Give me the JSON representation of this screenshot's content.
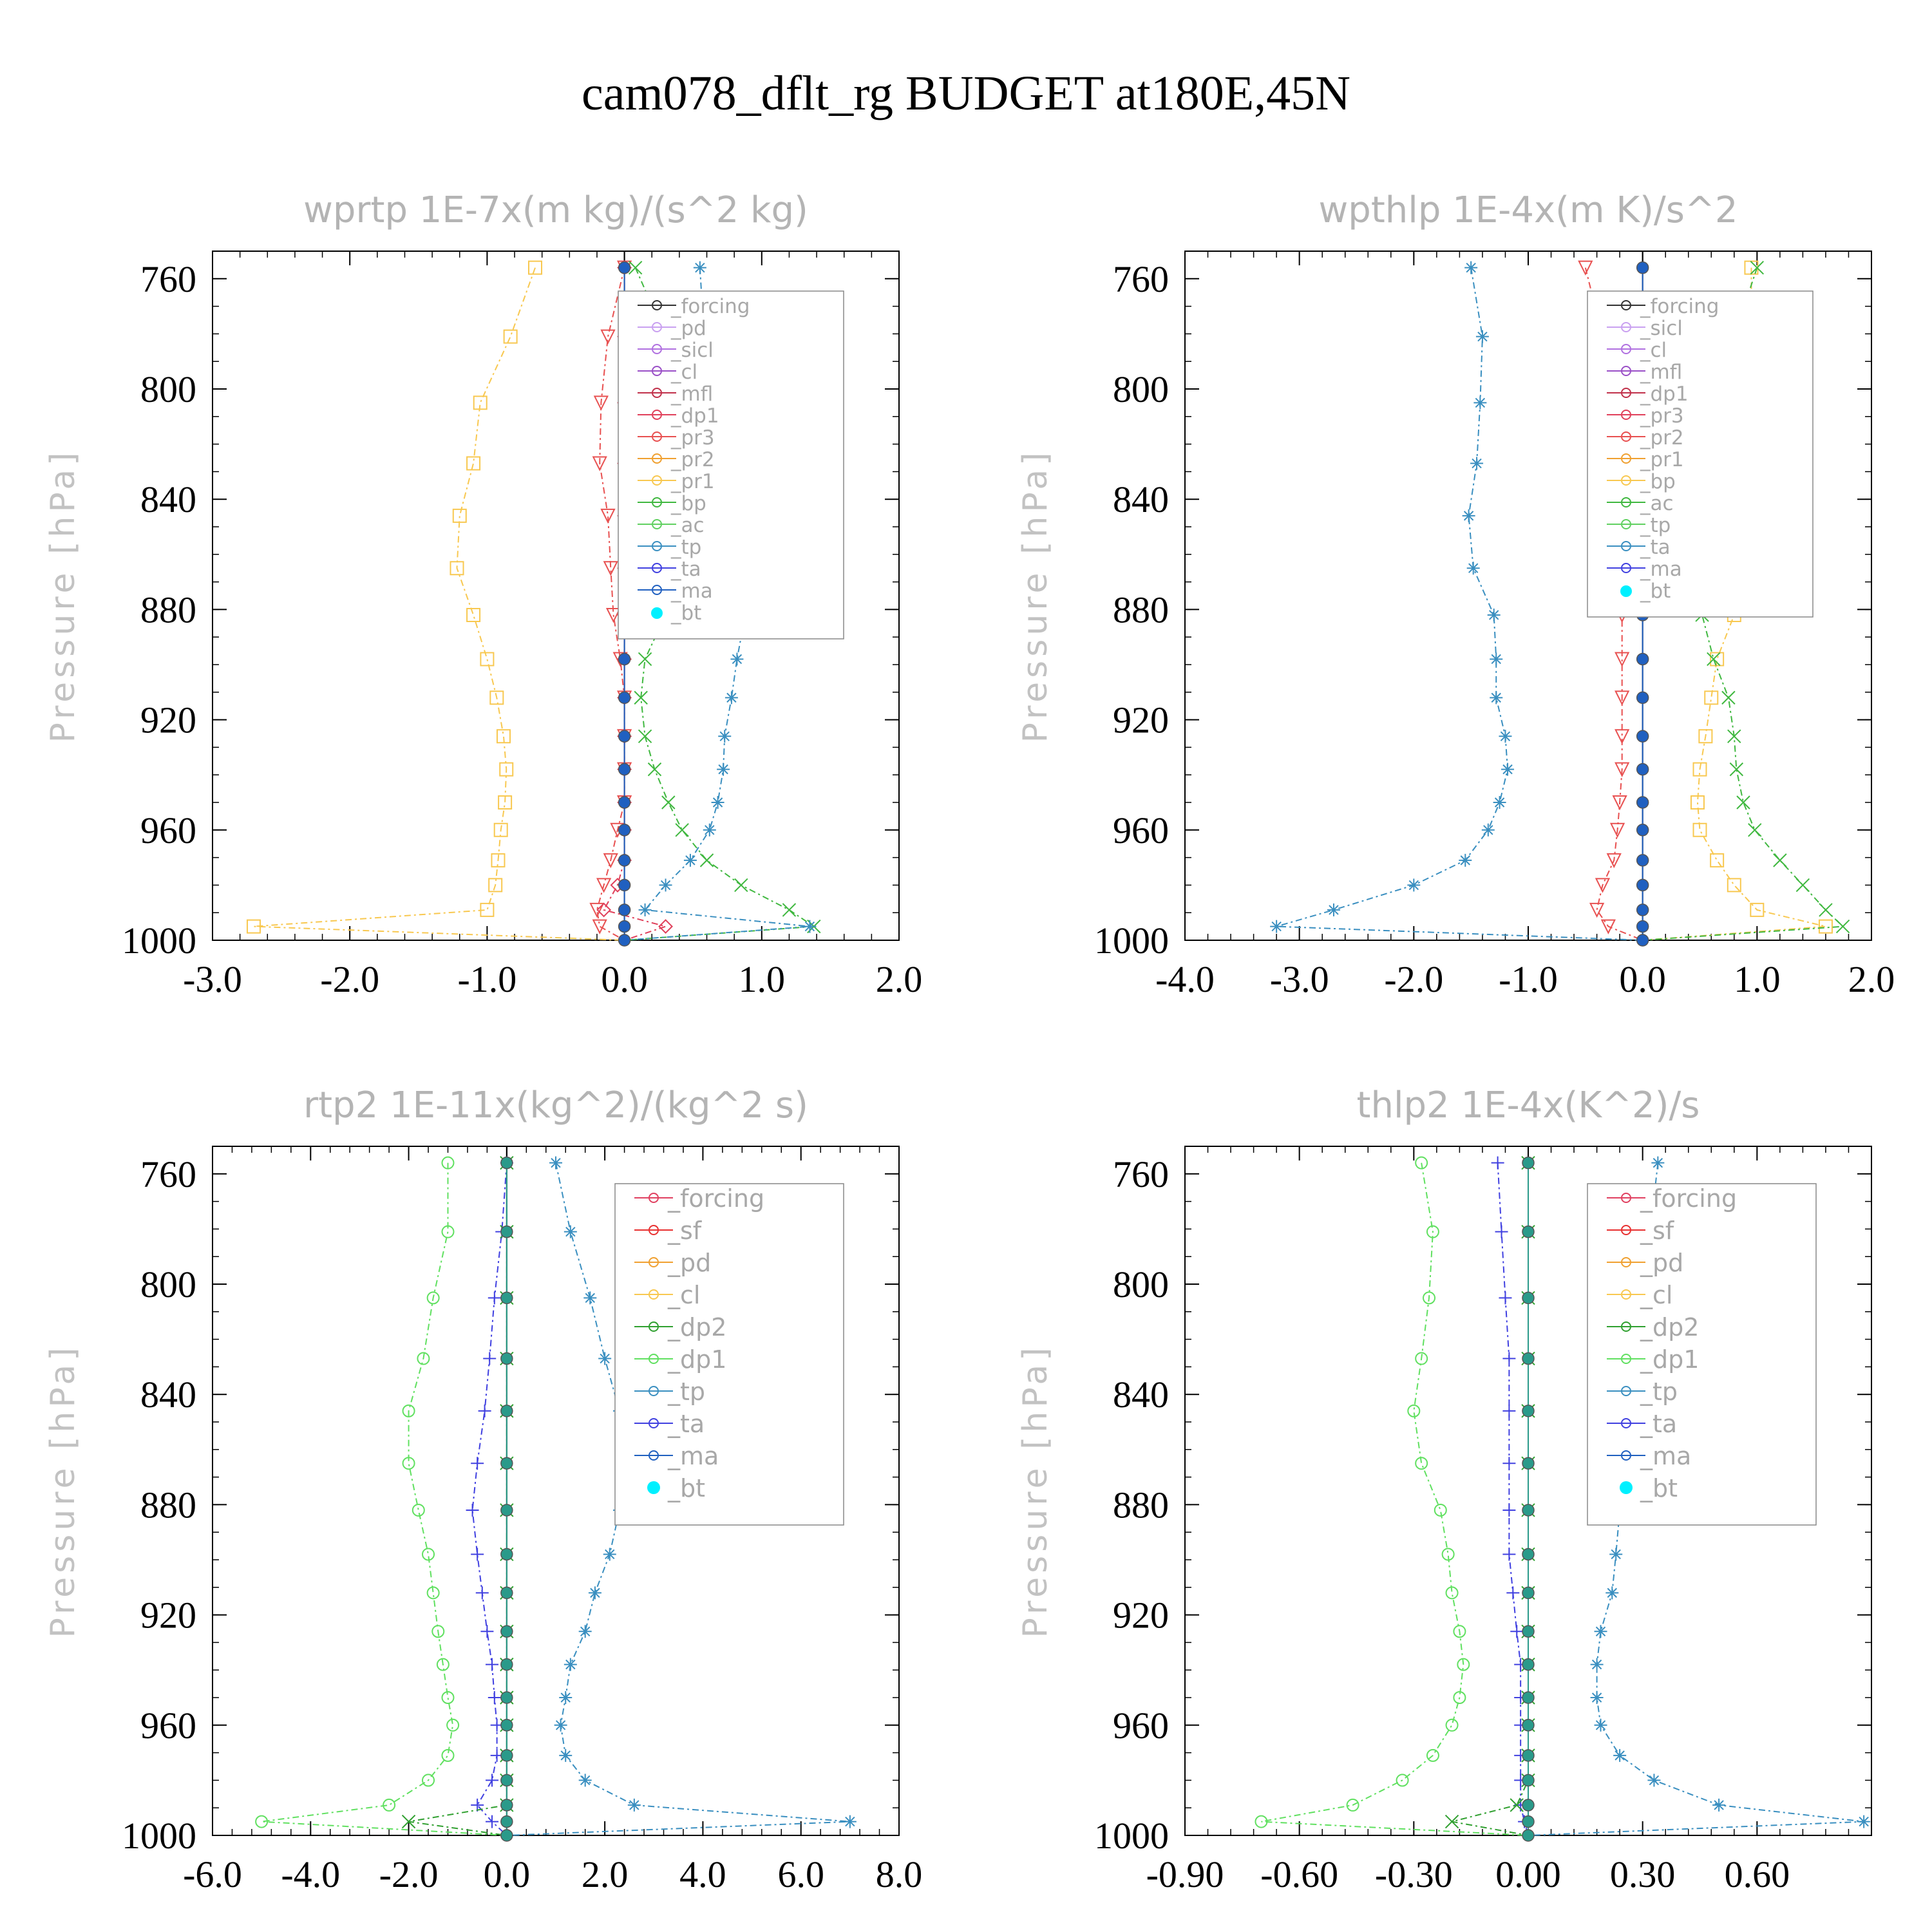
{
  "title": "cam078_dflt_rg  BUDGET at180E,45N",
  "colors": {
    "forcing": "#333333",
    "pd": "#c9a0f0",
    "sicl": "#b070e0",
    "cl": "#9a4fc7",
    "mfl": "#c0304a",
    "dp1": "#e0405a",
    "pr3": "#e85050",
    "pr2": "#f0a030",
    "pr1": "#f8c850",
    "bp": "#40b840",
    "ac": "#60d060",
    "tp": "#3a8fc0",
    "ta": "#4040e0",
    "ma": "#2060c0",
    "bt": "#00e8f0",
    "sf": "#e83030",
    "dp2": "#30a030",
    "green_dp1": "#60e060"
  },
  "chart_data": [
    {
      "type": "line",
      "title": "wprtp   1E-7x(m kg)/(s^2 kg)",
      "ylabel": "Pressure [hPa]",
      "xlim": [
        -3.0,
        2.0
      ],
      "ylim": [
        1000,
        750
      ],
      "xticks": [
        "-3.0",
        "-2.0",
        "-1.0",
        "0.0",
        "1.0",
        "2.0"
      ],
      "yticks": [
        "760",
        "800",
        "840",
        "880",
        "920",
        "960",
        "1000"
      ],
      "legend": [
        "_forcing",
        "_pd",
        "_sicl",
        "_cl",
        "_mfl",
        "_dp1",
        "_pr3",
        "_pr2",
        "_pr1",
        "_bp",
        "_ac",
        "_tp",
        "_ta",
        "_ma",
        "_bt"
      ],
      "legend_position": "upper-right",
      "levels": [
        756,
        781,
        805,
        827,
        846,
        865,
        882,
        898,
        912,
        926,
        938,
        950,
        960,
        971,
        980,
        989,
        995,
        1000
      ],
      "series": [
        {
          "name": "_pr1",
          "color": "#f8c850",
          "marker": "square",
          "values": [
            -0.65,
            -0.83,
            -1.05,
            -1.1,
            -1.2,
            -1.22,
            -1.1,
            -1.0,
            -0.93,
            -0.88,
            -0.86,
            -0.87,
            -0.9,
            -0.92,
            -0.94,
            -1.0,
            -2.7,
            0.0
          ]
        },
        {
          "name": "_pr3",
          "color": "#e85050",
          "marker": "triangle-down",
          "values": [
            0.0,
            -0.12,
            -0.17,
            -0.18,
            -0.12,
            -0.1,
            -0.08,
            -0.03,
            0.0,
            0.0,
            0.0,
            0.0,
            -0.05,
            -0.1,
            -0.15,
            -0.2,
            -0.18,
            0.0
          ]
        },
        {
          "name": "_dp1",
          "color": "#e0405a",
          "marker": "diamond",
          "values": [
            0.0,
            0.0,
            0.0,
            0.0,
            0.0,
            0.0,
            0.0,
            0.0,
            0.0,
            0.0,
            0.0,
            0.0,
            0.0,
            0.0,
            -0.05,
            -0.15,
            0.3,
            0.0
          ]
        },
        {
          "name": "_bp",
          "color": "#40b840",
          "marker": "cross",
          "values": [
            0.08,
            0.3,
            0.48,
            0.55,
            0.5,
            0.4,
            0.3,
            0.15,
            0.12,
            0.15,
            0.22,
            0.32,
            0.42,
            0.6,
            0.85,
            1.2,
            1.38,
            0.0
          ]
        },
        {
          "name": "_tp",
          "color": "#3a8fc0",
          "marker": "star",
          "values": [
            0.55,
            0.58,
            0.63,
            0.72,
            0.85,
            0.93,
            0.88,
            0.82,
            0.78,
            0.73,
            0.72,
            0.68,
            0.62,
            0.48,
            0.3,
            0.15,
            1.35,
            0.0
          ]
        },
        {
          "name": "_bt",
          "color": "#2060c0",
          "marker": "dot",
          "values": [
            0,
            0,
            0,
            0,
            0,
            0,
            0,
            0,
            0,
            0,
            0,
            0,
            0,
            0,
            0,
            0,
            0,
            0
          ]
        }
      ]
    },
    {
      "type": "line",
      "title": "wpthlp   1E-4x(m K)/s^2",
      "ylabel": "Pressure [hPa]",
      "xlim": [
        -4.0,
        2.0
      ],
      "ylim": [
        1000,
        750
      ],
      "xticks": [
        "-4.0",
        "-3.0",
        "-2.0",
        "-1.0",
        "0.0",
        "1.0",
        "2.0"
      ],
      "yticks": [
        "760",
        "800",
        "840",
        "880",
        "920",
        "960",
        "1000"
      ],
      "legend": [
        "_forcing",
        "_sicl",
        "_cl",
        "_mfl",
        "_dp1",
        "_pr3",
        "_pr2",
        "_pr1",
        "_bp",
        "_ac",
        "_tp",
        "_ta",
        "_ma",
        "_bt"
      ],
      "legend_position": "upper-right",
      "levels": [
        756,
        781,
        805,
        827,
        846,
        865,
        882,
        898,
        912,
        926,
        938,
        950,
        960,
        971,
        980,
        989,
        995,
        1000
      ],
      "series": [
        {
          "name": "_pr1",
          "color": "#f8c850",
          "marker": "square",
          "values": [
            0.95,
            0.95,
            0.97,
            0.98,
            1.0,
            0.95,
            0.8,
            0.65,
            0.6,
            0.55,
            0.5,
            0.48,
            0.5,
            0.65,
            0.8,
            1.0,
            1.6,
            0.0
          ]
        },
        {
          "name": "_pr3",
          "color": "#e85050",
          "marker": "triangle-down",
          "values": [
            -0.5,
            -0.35,
            -0.28,
            -0.25,
            -0.22,
            -0.2,
            -0.18,
            -0.18,
            -0.18,
            -0.18,
            -0.18,
            -0.2,
            -0.22,
            -0.25,
            -0.35,
            -0.4,
            -0.3,
            0.0
          ]
        },
        {
          "name": "_bp",
          "color": "#40b840",
          "marker": "cross",
          "values": [
            1.0,
            0.8,
            0.7,
            0.6,
            0.55,
            0.5,
            0.52,
            0.62,
            0.75,
            0.8,
            0.82,
            0.88,
            0.98,
            1.2,
            1.4,
            1.6,
            1.75,
            0.0
          ]
        },
        {
          "name": "_tp",
          "color": "#3a8fc0",
          "marker": "star",
          "values": [
            -1.5,
            -1.4,
            -1.42,
            -1.45,
            -1.52,
            -1.48,
            -1.3,
            -1.28,
            -1.28,
            -1.2,
            -1.18,
            -1.25,
            -1.35,
            -1.55,
            -2.0,
            -2.7,
            -3.2,
            0.0
          ]
        },
        {
          "name": "_bt",
          "color": "#2060c0",
          "marker": "dot",
          "values": [
            0,
            0,
            0,
            0,
            0,
            0,
            0,
            0,
            0,
            0,
            0,
            0,
            0,
            0,
            0,
            0,
            0,
            0
          ]
        }
      ]
    },
    {
      "type": "line",
      "title": "rtp2   1E-11x(kg^2)/(kg^2 s)",
      "ylabel": "Pressure [hPa]",
      "xlim": [
        -6.0,
        8.0
      ],
      "ylim": [
        1000,
        750
      ],
      "xticks": [
        "-6.0",
        "-4.0",
        "-2.0",
        "0.0",
        "2.0",
        "4.0",
        "6.0",
        "8.0"
      ],
      "yticks": [
        "760",
        "800",
        "840",
        "880",
        "920",
        "960",
        "1000"
      ],
      "legend": [
        "_forcing",
        "_sf",
        "_pd",
        "_cl",
        "_dp2",
        "_dp1",
        "_tp",
        "_ta",
        "_ma",
        "_bt"
      ],
      "legend_position": "upper-right",
      "levels": [
        756,
        781,
        805,
        827,
        846,
        865,
        882,
        898,
        912,
        926,
        938,
        950,
        960,
        971,
        980,
        989,
        995,
        1000
      ],
      "series": [
        {
          "name": "_dp1",
          "color": "#60e060",
          "marker": "circle",
          "values": [
            -1.2,
            -1.2,
            -1.5,
            -1.7,
            -2.0,
            -2.0,
            -1.8,
            -1.6,
            -1.5,
            -1.4,
            -1.3,
            -1.2,
            -1.1,
            -1.2,
            -1.6,
            -2.4,
            -5.0,
            0.0
          ]
        },
        {
          "name": "_ta",
          "color": "#4040e0",
          "marker": "plus",
          "values": [
            0.0,
            -0.1,
            -0.25,
            -0.35,
            -0.45,
            -0.6,
            -0.7,
            -0.6,
            -0.5,
            -0.4,
            -0.3,
            -0.25,
            -0.2,
            -0.2,
            -0.3,
            -0.6,
            -0.3,
            0.0
          ]
        },
        {
          "name": "_tp",
          "color": "#3a8fc0",
          "marker": "star",
          "values": [
            1.0,
            1.3,
            1.7,
            2.0,
            2.3,
            2.4,
            2.3,
            2.1,
            1.8,
            1.6,
            1.3,
            1.2,
            1.1,
            1.2,
            1.6,
            2.6,
            7.0,
            0.0
          ]
        },
        {
          "name": "_dp2",
          "color": "#30a030",
          "marker": "cross",
          "values": [
            0,
            0,
            0,
            0,
            0,
            0,
            0,
            0,
            0,
            0,
            0,
            0,
            0,
            0,
            0,
            0,
            -2.0,
            0.0
          ]
        },
        {
          "name": "_bt",
          "color": "#2a9a8a",
          "marker": "dot",
          "values": [
            0,
            0,
            0,
            0,
            0,
            0,
            0,
            0,
            0,
            0,
            0,
            0,
            0,
            0,
            0,
            0,
            0,
            0
          ]
        }
      ]
    },
    {
      "type": "line",
      "title": "thlp2   1E-4x(K^2)/s",
      "ylabel": "Pressure [hPa]",
      "xlim": [
        -0.9,
        0.9
      ],
      "ylim": [
        1000,
        750
      ],
      "xticks": [
        "-0.90",
        "-0.60",
        "-0.30",
        "0.00",
        "0.30",
        "0.60"
      ],
      "yticks": [
        "760",
        "800",
        "840",
        "880",
        "920",
        "960",
        "1000"
      ],
      "legend": [
        "_forcing",
        "_sf",
        "_pd",
        "_cl",
        "_dp2",
        "_dp1",
        "_tp",
        "_ta",
        "_ma",
        "_bt"
      ],
      "legend_position": "upper-right",
      "levels": [
        756,
        781,
        805,
        827,
        846,
        865,
        882,
        898,
        912,
        926,
        938,
        950,
        960,
        971,
        980,
        989,
        995,
        1000
      ],
      "series": [
        {
          "name": "_dp1",
          "color": "#60e060",
          "marker": "circle",
          "values": [
            -0.28,
            -0.25,
            -0.26,
            -0.28,
            -0.3,
            -0.28,
            -0.23,
            -0.21,
            -0.2,
            -0.18,
            -0.17,
            -0.18,
            -0.2,
            -0.25,
            -0.33,
            -0.46,
            -0.7,
            0.0
          ]
        },
        {
          "name": "_ta",
          "color": "#4040e0",
          "marker": "plus",
          "values": [
            -0.08,
            -0.07,
            -0.06,
            -0.05,
            -0.05,
            -0.05,
            -0.05,
            -0.05,
            -0.04,
            -0.03,
            -0.02,
            -0.02,
            -0.02,
            -0.02,
            -0.02,
            -0.02,
            -0.01,
            0.0
          ]
        },
        {
          "name": "_tp",
          "color": "#3a8fc0",
          "marker": "star",
          "values": [
            0.34,
            0.32,
            0.3,
            0.3,
            0.28,
            0.27,
            0.24,
            0.23,
            0.22,
            0.19,
            0.18,
            0.18,
            0.19,
            0.24,
            0.33,
            0.5,
            0.88,
            0.0
          ]
        },
        {
          "name": "_dp2",
          "color": "#30a030",
          "marker": "cross",
          "values": [
            0,
            0,
            0,
            0,
            0,
            0,
            0,
            0,
            0,
            0,
            0,
            0,
            0,
            0,
            0,
            -0.03,
            -0.2,
            0.0
          ]
        },
        {
          "name": "_bt",
          "color": "#2a9a8a",
          "marker": "dot",
          "values": [
            0,
            0,
            0,
            0,
            0,
            0,
            0,
            0,
            0,
            0,
            0,
            0,
            0,
            0,
            0,
            0,
            0,
            0
          ]
        }
      ]
    }
  ]
}
